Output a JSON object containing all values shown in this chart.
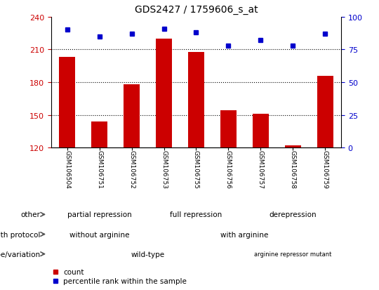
{
  "title": "GDS2427 / 1759606_s_at",
  "samples": [
    "GSM106504",
    "GSM106751",
    "GSM106752",
    "GSM106753",
    "GSM106755",
    "GSM106756",
    "GSM106757",
    "GSM106758",
    "GSM106759"
  ],
  "counts": [
    203,
    144,
    178,
    220,
    208,
    154,
    151,
    122,
    186
  ],
  "percentile_ranks": [
    90,
    85,
    87,
    91,
    88,
    78,
    82,
    78,
    87
  ],
  "ylim_left": [
    120,
    240
  ],
  "ylim_right": [
    0,
    100
  ],
  "yticks_left": [
    120,
    150,
    180,
    210,
    240
  ],
  "yticks_right": [
    0,
    25,
    50,
    75,
    100
  ],
  "bar_color": "#cc0000",
  "dot_color": "#0000cc",
  "bar_bottom": 120,
  "annotation_rows": [
    {
      "label": "other",
      "segments": [
        {
          "start": 0,
          "end": 3,
          "text": "partial repression",
          "color": "#aaeea0"
        },
        {
          "start": 3,
          "end": 6,
          "text": "full repression",
          "color": "#44cc55"
        },
        {
          "start": 6,
          "end": 9,
          "text": "derepression",
          "color": "#44bb44"
        }
      ]
    },
    {
      "label": "growth protocol",
      "segments": [
        {
          "start": 0,
          "end": 3,
          "text": "without arginine",
          "color": "#7777cc"
        },
        {
          "start": 3,
          "end": 9,
          "text": "with arginine",
          "color": "#aaaadd"
        }
      ]
    },
    {
      "label": "genotype/variation",
      "segments": [
        {
          "start": 0,
          "end": 6,
          "text": "wild-type",
          "color": "#ffbbbb"
        },
        {
          "start": 6,
          "end": 9,
          "text": "arginine repressor mutant",
          "color": "#cc8888"
        }
      ]
    }
  ],
  "legend_items": [
    {
      "color": "#cc0000",
      "label": "count"
    },
    {
      "color": "#0000cc",
      "label": "percentile rank within the sample"
    }
  ],
  "grid_yticks": [
    150,
    180,
    210
  ],
  "tick_color_left": "#cc0000",
  "tick_color_right": "#0000cc",
  "bar_width": 0.5,
  "xticklabel_bg": "#d0d0d0"
}
